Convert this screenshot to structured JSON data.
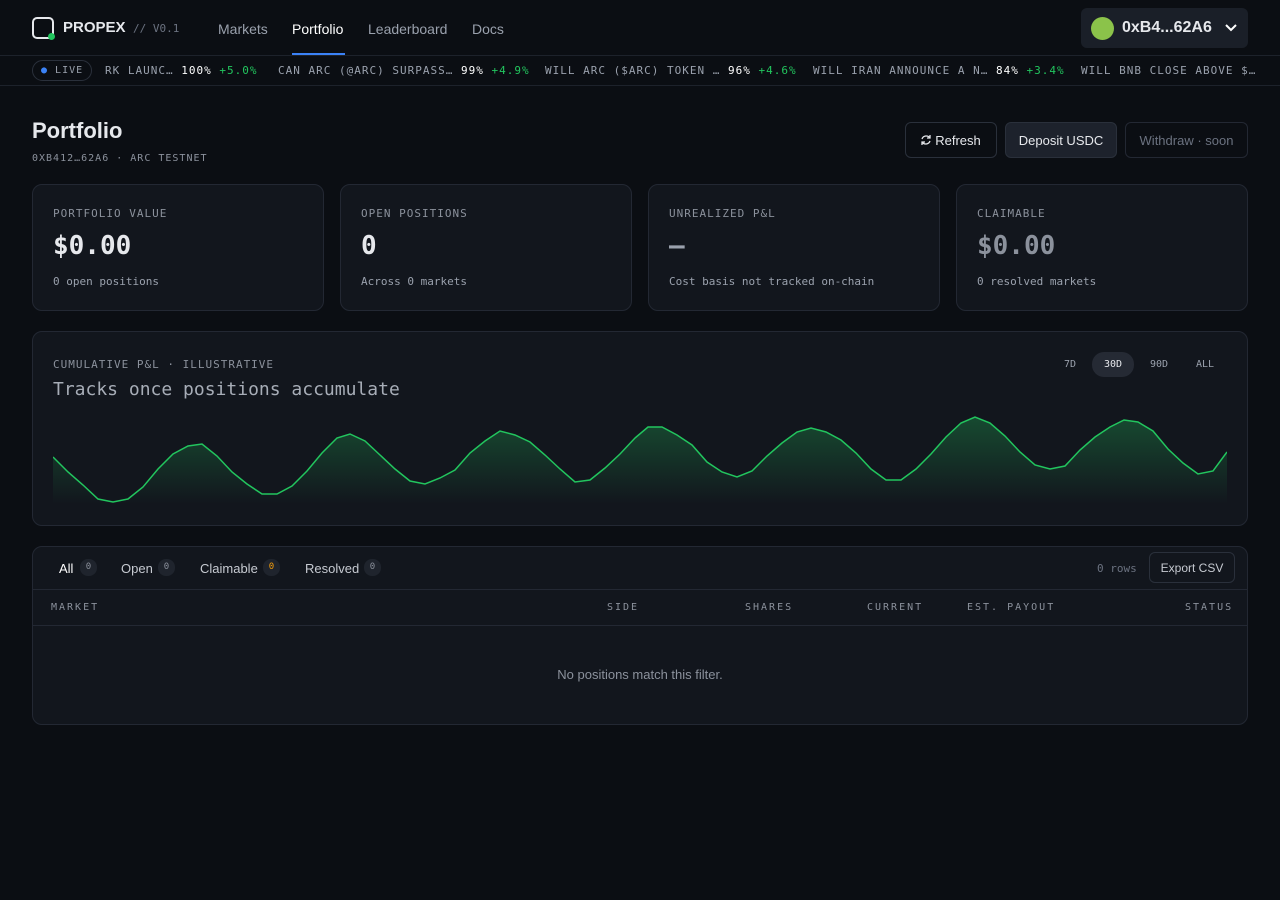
{
  "nav": {
    "brand": "PROPEX",
    "version": "// V0.1",
    "links": [
      "Markets",
      "Portfolio",
      "Leaderboard",
      "Docs"
    ],
    "wallet": "0xB4...62A6"
  },
  "ticker": {
    "live": "LIVE",
    "items": [
      {
        "title": "RK LAUNC…",
        "price": "100%",
        "change": "+5.0%"
      },
      {
        "title": "CAN ARC (@ARC) SURPASS…",
        "price": "99%",
        "change": "+4.9%"
      },
      {
        "title": "WILL ARC ($ARC) TOKEN …",
        "price": "96%",
        "change": "+4.6%"
      },
      {
        "title": "WILL IRAN ANNOUNCE A N…",
        "price": "84%",
        "change": "+3.4%"
      },
      {
        "title": "WILL BNB CLOSE ABOVE $…",
        "price": "",
        "change": ""
      }
    ]
  },
  "header": {
    "title": "Portfolio",
    "subtitle": "0XB412…62A6 · ARC TESTNET",
    "buttons": [
      "Refresh",
      "Deposit USDC",
      "Withdraw · soon"
    ]
  },
  "stats": [
    {
      "label": "PORTFOLIO VALUE",
      "value": "$0.00",
      "sub": "0 open positions"
    },
    {
      "label": "OPEN POSITIONS",
      "value": "0",
      "sub": "Across 0 markets"
    },
    {
      "label": "UNREALIZED P&L",
      "value": "—",
      "sub": "Cost basis not tracked on-chain"
    },
    {
      "label": "CLAIMABLE",
      "value": "$0.00",
      "sub": "0 resolved markets"
    }
  ],
  "pnl": {
    "label": "CUMULATIVE P&L · ILLUSTRATIVE",
    "headline": "Tracks once positions accumulate",
    "ranges": [
      "7D",
      "30D",
      "90D",
      "ALL"
    ]
  },
  "table": {
    "tabs": [
      {
        "label": "All",
        "count": "0"
      },
      {
        "label": "Open",
        "count": "0"
      },
      {
        "label": "Claimable",
        "count": "0"
      },
      {
        "label": "Resolved",
        "count": "0"
      }
    ],
    "rows_count": "0 rows",
    "export": "Export CSV",
    "columns": [
      "MARKET",
      "SIDE",
      "SHARES",
      "CURRENT",
      "EST. PAYOUT",
      "STATUS"
    ],
    "empty": "No positions match this filter."
  }
}
